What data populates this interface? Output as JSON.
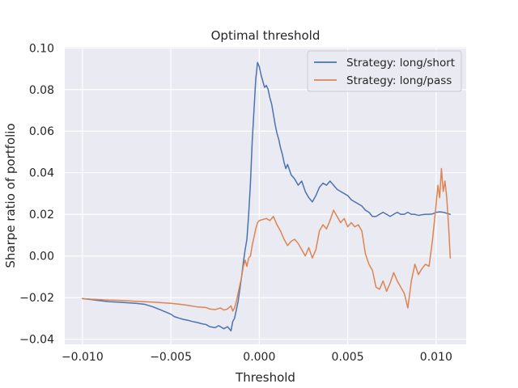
{
  "chart_data": {
    "type": "line",
    "title": "Optimal threshold",
    "xlabel": "Threshold",
    "ylabel": "Sharpe ratio of portfolio",
    "xlim": [
      -0.011,
      0.0117
    ],
    "ylim": [
      -0.0425,
      0.1005
    ],
    "xticks": [
      -0.01,
      -0.005,
      0.0,
      0.005,
      0.01
    ],
    "xtick_labels": [
      "−0.010",
      "−0.005",
      "0.000",
      "0.005",
      "0.010"
    ],
    "yticks": [
      -0.04,
      -0.02,
      0.0,
      0.02,
      0.04,
      0.06,
      0.08,
      0.1
    ],
    "ytick_labels": [
      "−0.04",
      "−0.02",
      "0.00",
      "0.02",
      "0.04",
      "0.06",
      "0.08",
      "0.10"
    ],
    "grid": true,
    "legend_position": "top-right",
    "background": "#eaeaf2",
    "series": [
      {
        "name": "Strategy: long/short",
        "color": "#4c72b0",
        "x": [
          -0.01,
          -0.0095,
          -0.009,
          -0.0085,
          -0.008,
          -0.0075,
          -0.007,
          -0.0065,
          -0.006,
          -0.0055,
          -0.005,
          -0.0048,
          -0.0045,
          -0.0043,
          -0.004,
          -0.0038,
          -0.0035,
          -0.0033,
          -0.003,
          -0.0028,
          -0.0025,
          -0.0023,
          -0.002,
          -0.0018,
          -0.0016,
          -0.0015,
          -0.0014,
          -0.0013,
          -0.0012,
          -0.0011,
          -0.001,
          -0.0009,
          -0.0008,
          -0.0007,
          -0.0006,
          -0.0005,
          -0.0004,
          -0.0003,
          -0.0002,
          -0.0001,
          0.0,
          0.0001,
          0.0002,
          0.0003,
          0.0004,
          0.0005,
          0.0006,
          0.0007,
          0.0008,
          0.0009,
          0.001,
          0.0011,
          0.0012,
          0.0013,
          0.0014,
          0.0015,
          0.0016,
          0.0018,
          0.002,
          0.0022,
          0.0024,
          0.0026,
          0.0028,
          0.003,
          0.0032,
          0.0034,
          0.0036,
          0.0038,
          0.004,
          0.0042,
          0.0044,
          0.0046,
          0.0048,
          0.005,
          0.0052,
          0.0054,
          0.0056,
          0.0058,
          0.006,
          0.0062,
          0.0064,
          0.0066,
          0.0068,
          0.007,
          0.0072,
          0.0074,
          0.0076,
          0.0078,
          0.008,
          0.0082,
          0.0084,
          0.0086,
          0.0088,
          0.009,
          0.0092,
          0.0094,
          0.0096,
          0.0098,
          0.01,
          0.0102,
          0.0104,
          0.0106,
          0.0108
        ],
        "y": [
          -0.0205,
          -0.021,
          -0.0215,
          -0.022,
          -0.0222,
          -0.0225,
          -0.0228,
          -0.0232,
          -0.0245,
          -0.0262,
          -0.028,
          -0.0292,
          -0.03,
          -0.0305,
          -0.031,
          -0.0315,
          -0.032,
          -0.0325,
          -0.033,
          -0.034,
          -0.0345,
          -0.0335,
          -0.035,
          -0.034,
          -0.036,
          -0.0315,
          -0.03,
          -0.026,
          -0.022,
          -0.016,
          -0.01,
          -0.003,
          0.003,
          0.008,
          0.02,
          0.035,
          0.055,
          0.07,
          0.085,
          0.093,
          0.091,
          0.087,
          0.084,
          0.081,
          0.082,
          0.08,
          0.076,
          0.073,
          0.068,
          0.063,
          0.059,
          0.056,
          0.052,
          0.049,
          0.045,
          0.042,
          0.044,
          0.039,
          0.037,
          0.034,
          0.036,
          0.031,
          0.028,
          0.026,
          0.029,
          0.033,
          0.035,
          0.034,
          0.036,
          0.034,
          0.032,
          0.031,
          0.03,
          0.029,
          0.027,
          0.026,
          0.025,
          0.024,
          0.022,
          0.021,
          0.019,
          0.019,
          0.02,
          0.021,
          0.02,
          0.019,
          0.02,
          0.021,
          0.02,
          0.02,
          0.021,
          0.02,
          0.02,
          0.0195,
          0.0198,
          0.02,
          0.02,
          0.0202,
          0.021,
          0.0212,
          0.021,
          0.0205,
          0.02
        ]
      },
      {
        "name": "Strategy: long/pass",
        "color": "#dd8452",
        "x": [
          -0.01,
          -0.0095,
          -0.009,
          -0.0085,
          -0.008,
          -0.0075,
          -0.007,
          -0.0065,
          -0.006,
          -0.0055,
          -0.005,
          -0.0045,
          -0.004,
          -0.0035,
          -0.003,
          -0.0028,
          -0.0025,
          -0.0022,
          -0.002,
          -0.0018,
          -0.0016,
          -0.0015,
          -0.0014,
          -0.0013,
          -0.0012,
          -0.0011,
          -0.001,
          -0.0009,
          -0.0008,
          -0.0007,
          -0.0006,
          -0.0005,
          -0.0004,
          -0.0003,
          -0.0002,
          -0.0001,
          0.0,
          0.0002,
          0.0004,
          0.0006,
          0.0008,
          0.001,
          0.0012,
          0.0014,
          0.0016,
          0.0018,
          0.002,
          0.0022,
          0.0024,
          0.0026,
          0.0028,
          0.003,
          0.0032,
          0.0034,
          0.0036,
          0.0038,
          0.004,
          0.0042,
          0.0044,
          0.0046,
          0.0048,
          0.005,
          0.0052,
          0.0054,
          0.0056,
          0.0058,
          0.006,
          0.0062,
          0.0064,
          0.0066,
          0.0068,
          0.007,
          0.0072,
          0.0074,
          0.0076,
          0.0078,
          0.008,
          0.0082,
          0.0084,
          0.0086,
          0.0088,
          0.009,
          0.0092,
          0.0094,
          0.0096,
          0.0098,
          0.01,
          0.0101,
          0.0102,
          0.0103,
          0.0104,
          0.0105,
          0.0106,
          0.0107,
          0.0108
        ],
        "y": [
          -0.0205,
          -0.0208,
          -0.021,
          -0.0212,
          -0.0213,
          -0.0215,
          -0.0218,
          -0.022,
          -0.0222,
          -0.0225,
          -0.0228,
          -0.0232,
          -0.0238,
          -0.0245,
          -0.0248,
          -0.0255,
          -0.0258,
          -0.025,
          -0.026,
          -0.0255,
          -0.024,
          -0.0265,
          -0.025,
          -0.022,
          -0.018,
          -0.014,
          -0.01,
          -0.005,
          -0.002,
          -0.005,
          -0.001,
          0.0,
          0.005,
          0.009,
          0.013,
          0.016,
          0.017,
          0.0175,
          0.018,
          0.017,
          0.019,
          0.015,
          0.012,
          0.008,
          0.005,
          0.007,
          0.008,
          0.006,
          0.003,
          0.0,
          0.004,
          -0.001,
          0.003,
          0.012,
          0.015,
          0.013,
          0.017,
          0.022,
          0.019,
          0.016,
          0.018,
          0.014,
          0.016,
          0.014,
          0.015,
          0.012,
          0.001,
          -0.004,
          -0.007,
          -0.015,
          -0.016,
          -0.012,
          -0.017,
          -0.013,
          -0.008,
          -0.012,
          -0.015,
          -0.018,
          -0.025,
          -0.012,
          -0.004,
          -0.009,
          -0.006,
          -0.004,
          -0.005,
          0.008,
          0.025,
          0.034,
          0.028,
          0.042,
          0.031,
          0.036,
          0.028,
          0.015,
          -0.001
        ]
      }
    ]
  }
}
